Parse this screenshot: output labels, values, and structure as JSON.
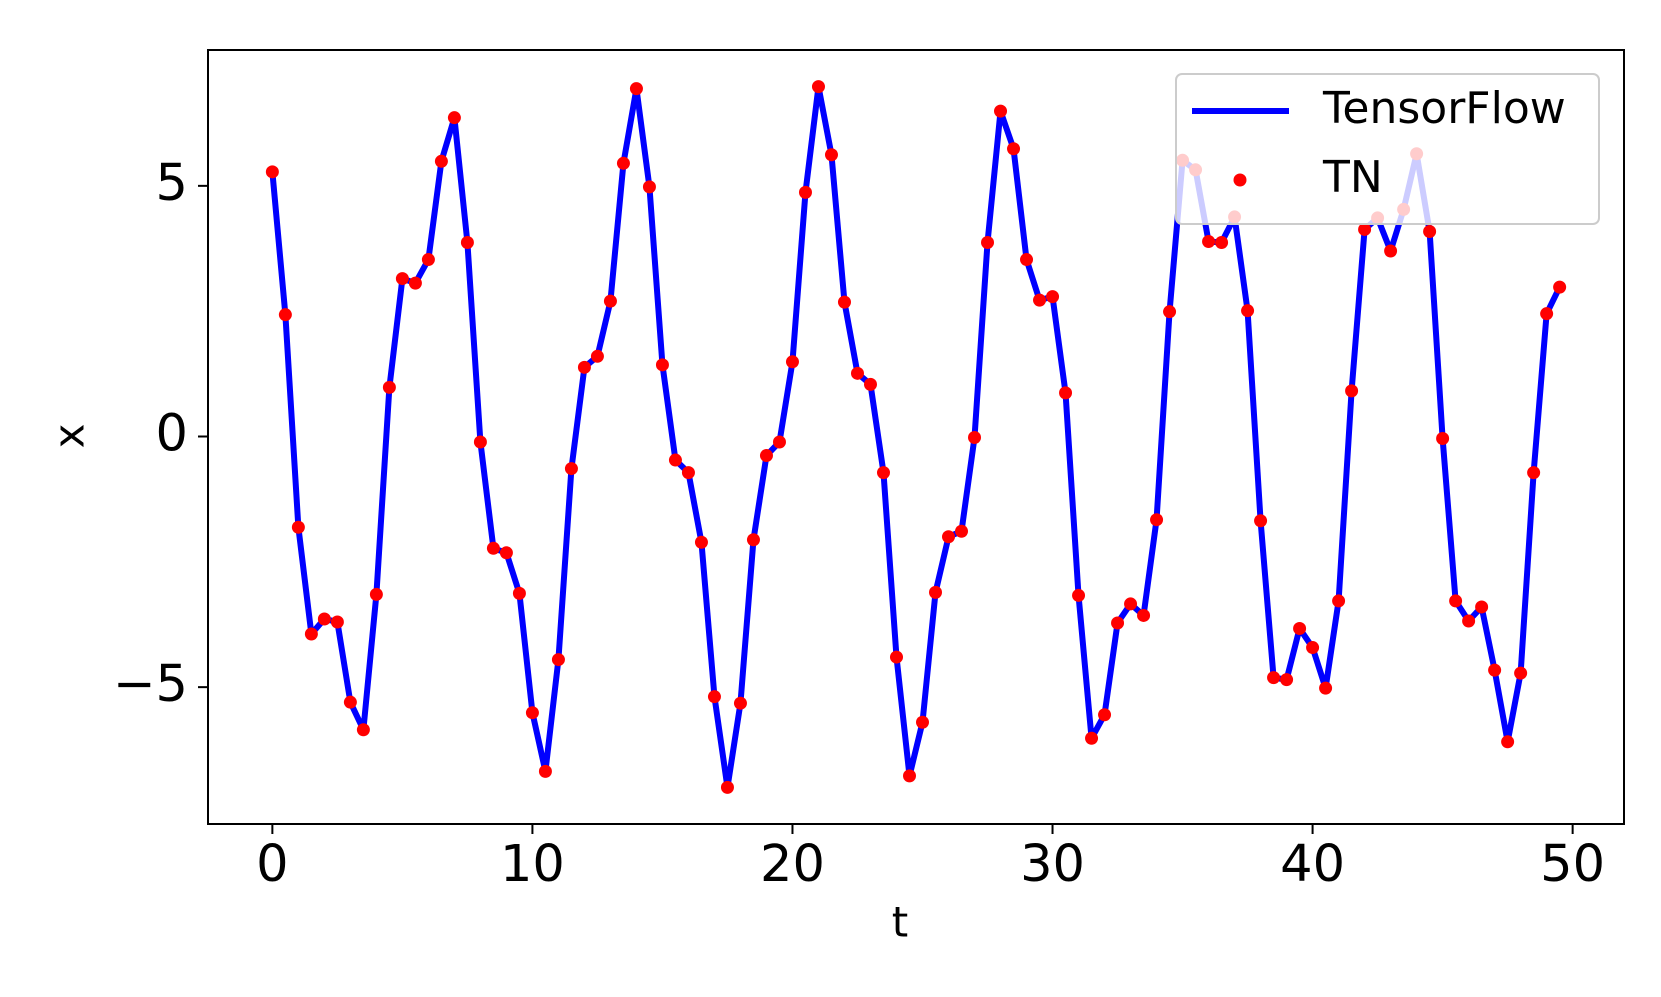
{
  "chart_data": {
    "type": "line",
    "xlabel": "t",
    "ylabel": "x",
    "x": [
      0,
      0.5,
      1,
      1.5,
      2,
      2.5,
      3,
      3.5,
      4,
      4.5,
      5,
      5.5,
      6,
      6.5,
      7,
      7.5,
      8,
      8.5,
      9,
      9.5,
      10,
      10.5,
      11,
      11.5,
      12,
      12.5,
      13,
      13.5,
      14,
      14.5,
      15,
      15.5,
      16,
      16.5,
      17,
      17.5,
      18,
      18.5,
      19,
      19.5,
      20,
      20.5,
      21,
      21.5,
      22,
      22.5,
      23,
      23.5,
      24,
      24.5,
      25,
      25.5,
      26,
      26.5,
      27,
      27.5,
      28,
      28.5,
      29,
      29.5,
      30,
      30.5,
      31,
      31.5,
      32,
      32.5,
      33,
      33.5,
      34,
      34.5,
      35,
      35.5,
      36,
      36.5,
      37,
      37.5,
      38,
      38.5,
      39,
      39.5,
      40,
      40.5,
      41,
      41.5,
      42,
      42.5,
      43,
      43.5,
      44,
      44.5,
      45,
      45.5,
      46,
      46.5,
      47,
      47.5,
      48,
      48.5,
      49,
      49.5
    ],
    "series": [
      {
        "name": "TensorFlow",
        "color": "#0000ff",
        "mode": "line",
        "values": [
          5.28,
          2.43,
          -1.81,
          -3.94,
          -3.64,
          -3.7,
          -5.3,
          -5.85,
          -3.15,
          0.98,
          3.15,
          3.06,
          3.53,
          5.49,
          6.36,
          3.87,
          -0.11,
          -2.23,
          -2.32,
          -3.13,
          -5.51,
          -6.68,
          -4.45,
          -0.64,
          1.38,
          1.6,
          2.7,
          5.45,
          6.94,
          4.98,
          1.43,
          -0.47,
          -0.72,
          -2.11,
          -5.19,
          -7.0,
          -5.32,
          -2.06,
          -0.38,
          -0.11,
          1.49,
          4.87,
          6.98,
          5.62,
          2.68,
          1.26,
          1.04,
          -0.72,
          -4.4,
          -6.77,
          -5.7,
          -3.11,
          -2.0,
          -1.89,
          -0.02,
          3.87,
          6.49,
          5.74,
          3.53,
          2.72,
          2.79,
          0.87,
          -3.17,
          -6.02,
          -5.55,
          -3.72,
          -3.34,
          -3.57,
          -1.66,
          2.49,
          5.51,
          5.32,
          3.89,
          3.87,
          4.38,
          2.51,
          -1.68,
          -4.81,
          -4.85,
          -3.83,
          -4.21,
          -5.02,
          -3.28,
          0.91,
          4.13,
          4.36,
          3.7,
          4.53,
          5.64,
          4.09,
          -0.04,
          -3.28,
          -3.68,
          -3.4,
          -4.66,
          -6.09,
          -4.72,
          -0.72,
          2.45,
          2.98
        ]
      },
      {
        "name": "TN",
        "color": "#ff0000",
        "mode": "markers",
        "values": [
          5.28,
          2.43,
          -1.81,
          -3.94,
          -3.64,
          -3.7,
          -5.3,
          -5.85,
          -3.15,
          0.98,
          3.15,
          3.06,
          3.53,
          5.49,
          6.36,
          3.87,
          -0.11,
          -2.23,
          -2.32,
          -3.13,
          -5.51,
          -6.68,
          -4.45,
          -0.64,
          1.38,
          1.6,
          2.7,
          5.45,
          6.94,
          4.98,
          1.43,
          -0.47,
          -0.72,
          -2.11,
          -5.19,
          -7.0,
          -5.32,
          -2.06,
          -0.38,
          -0.11,
          1.49,
          4.87,
          6.98,
          5.62,
          2.68,
          1.26,
          1.04,
          -0.72,
          -4.4,
          -6.77,
          -5.7,
          -3.11,
          -2.0,
          -1.89,
          -0.02,
          3.87,
          6.49,
          5.74,
          3.53,
          2.72,
          2.79,
          0.87,
          -3.17,
          -6.02,
          -5.55,
          -3.72,
          -3.34,
          -3.57,
          -1.66,
          2.49,
          5.51,
          5.32,
          3.89,
          3.87,
          4.38,
          2.51,
          -1.68,
          -4.81,
          -4.85,
          -3.83,
          -4.21,
          -5.02,
          -3.28,
          0.91,
          4.13,
          4.36,
          3.7,
          4.53,
          5.64,
          4.09,
          -0.04,
          -3.28,
          -3.68,
          -3.4,
          -4.66,
          -6.09,
          -4.72,
          -0.72,
          2.45,
          2.98
        ]
      }
    ],
    "xlim": [
      -2.475,
      51.975
    ],
    "xticks": [
      0,
      10,
      20,
      30,
      40,
      50
    ],
    "ylim": [
      -7.73,
      7.71
    ],
    "yticks": [
      {
        "value": -5,
        "label": "−5"
      },
      0,
      5
    ],
    "legend": "upper right"
  }
}
